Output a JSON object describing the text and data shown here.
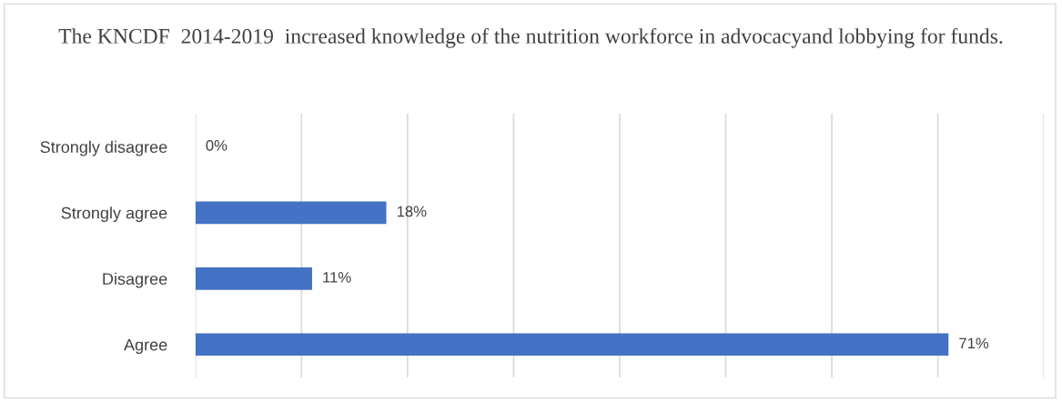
{
  "chart_data": {
    "type": "bar",
    "orientation": "horizontal",
    "title": "The KNCDF  2014-2019  increased knowledge of the nutrition workforce in advocacyand lobbying for funds.",
    "categories": [
      "Strongly disagree",
      "Strongly agree",
      "Disagree",
      "Agree"
    ],
    "values": [
      0,
      18,
      11,
      71
    ],
    "value_labels": [
      "0%",
      "18%",
      "11%",
      "71%"
    ],
    "color": "#4472c4",
    "xlim": [
      0,
      80
    ],
    "xticks": [
      {
        "value": 0,
        "label": null
      },
      {
        "value": 10,
        "label": null
      },
      {
        "value": 20,
        "label": null
      },
      {
        "value": 30,
        "label": null
      },
      {
        "value": 40,
        "label": null
      },
      {
        "value": 50,
        "label": null
      },
      {
        "value": 60,
        "label": null
      },
      {
        "value": 70,
        "label": null
      },
      {
        "value": 80,
        "label": null
      }
    ],
    "grid": "x",
    "tick_labels": "y"
  }
}
